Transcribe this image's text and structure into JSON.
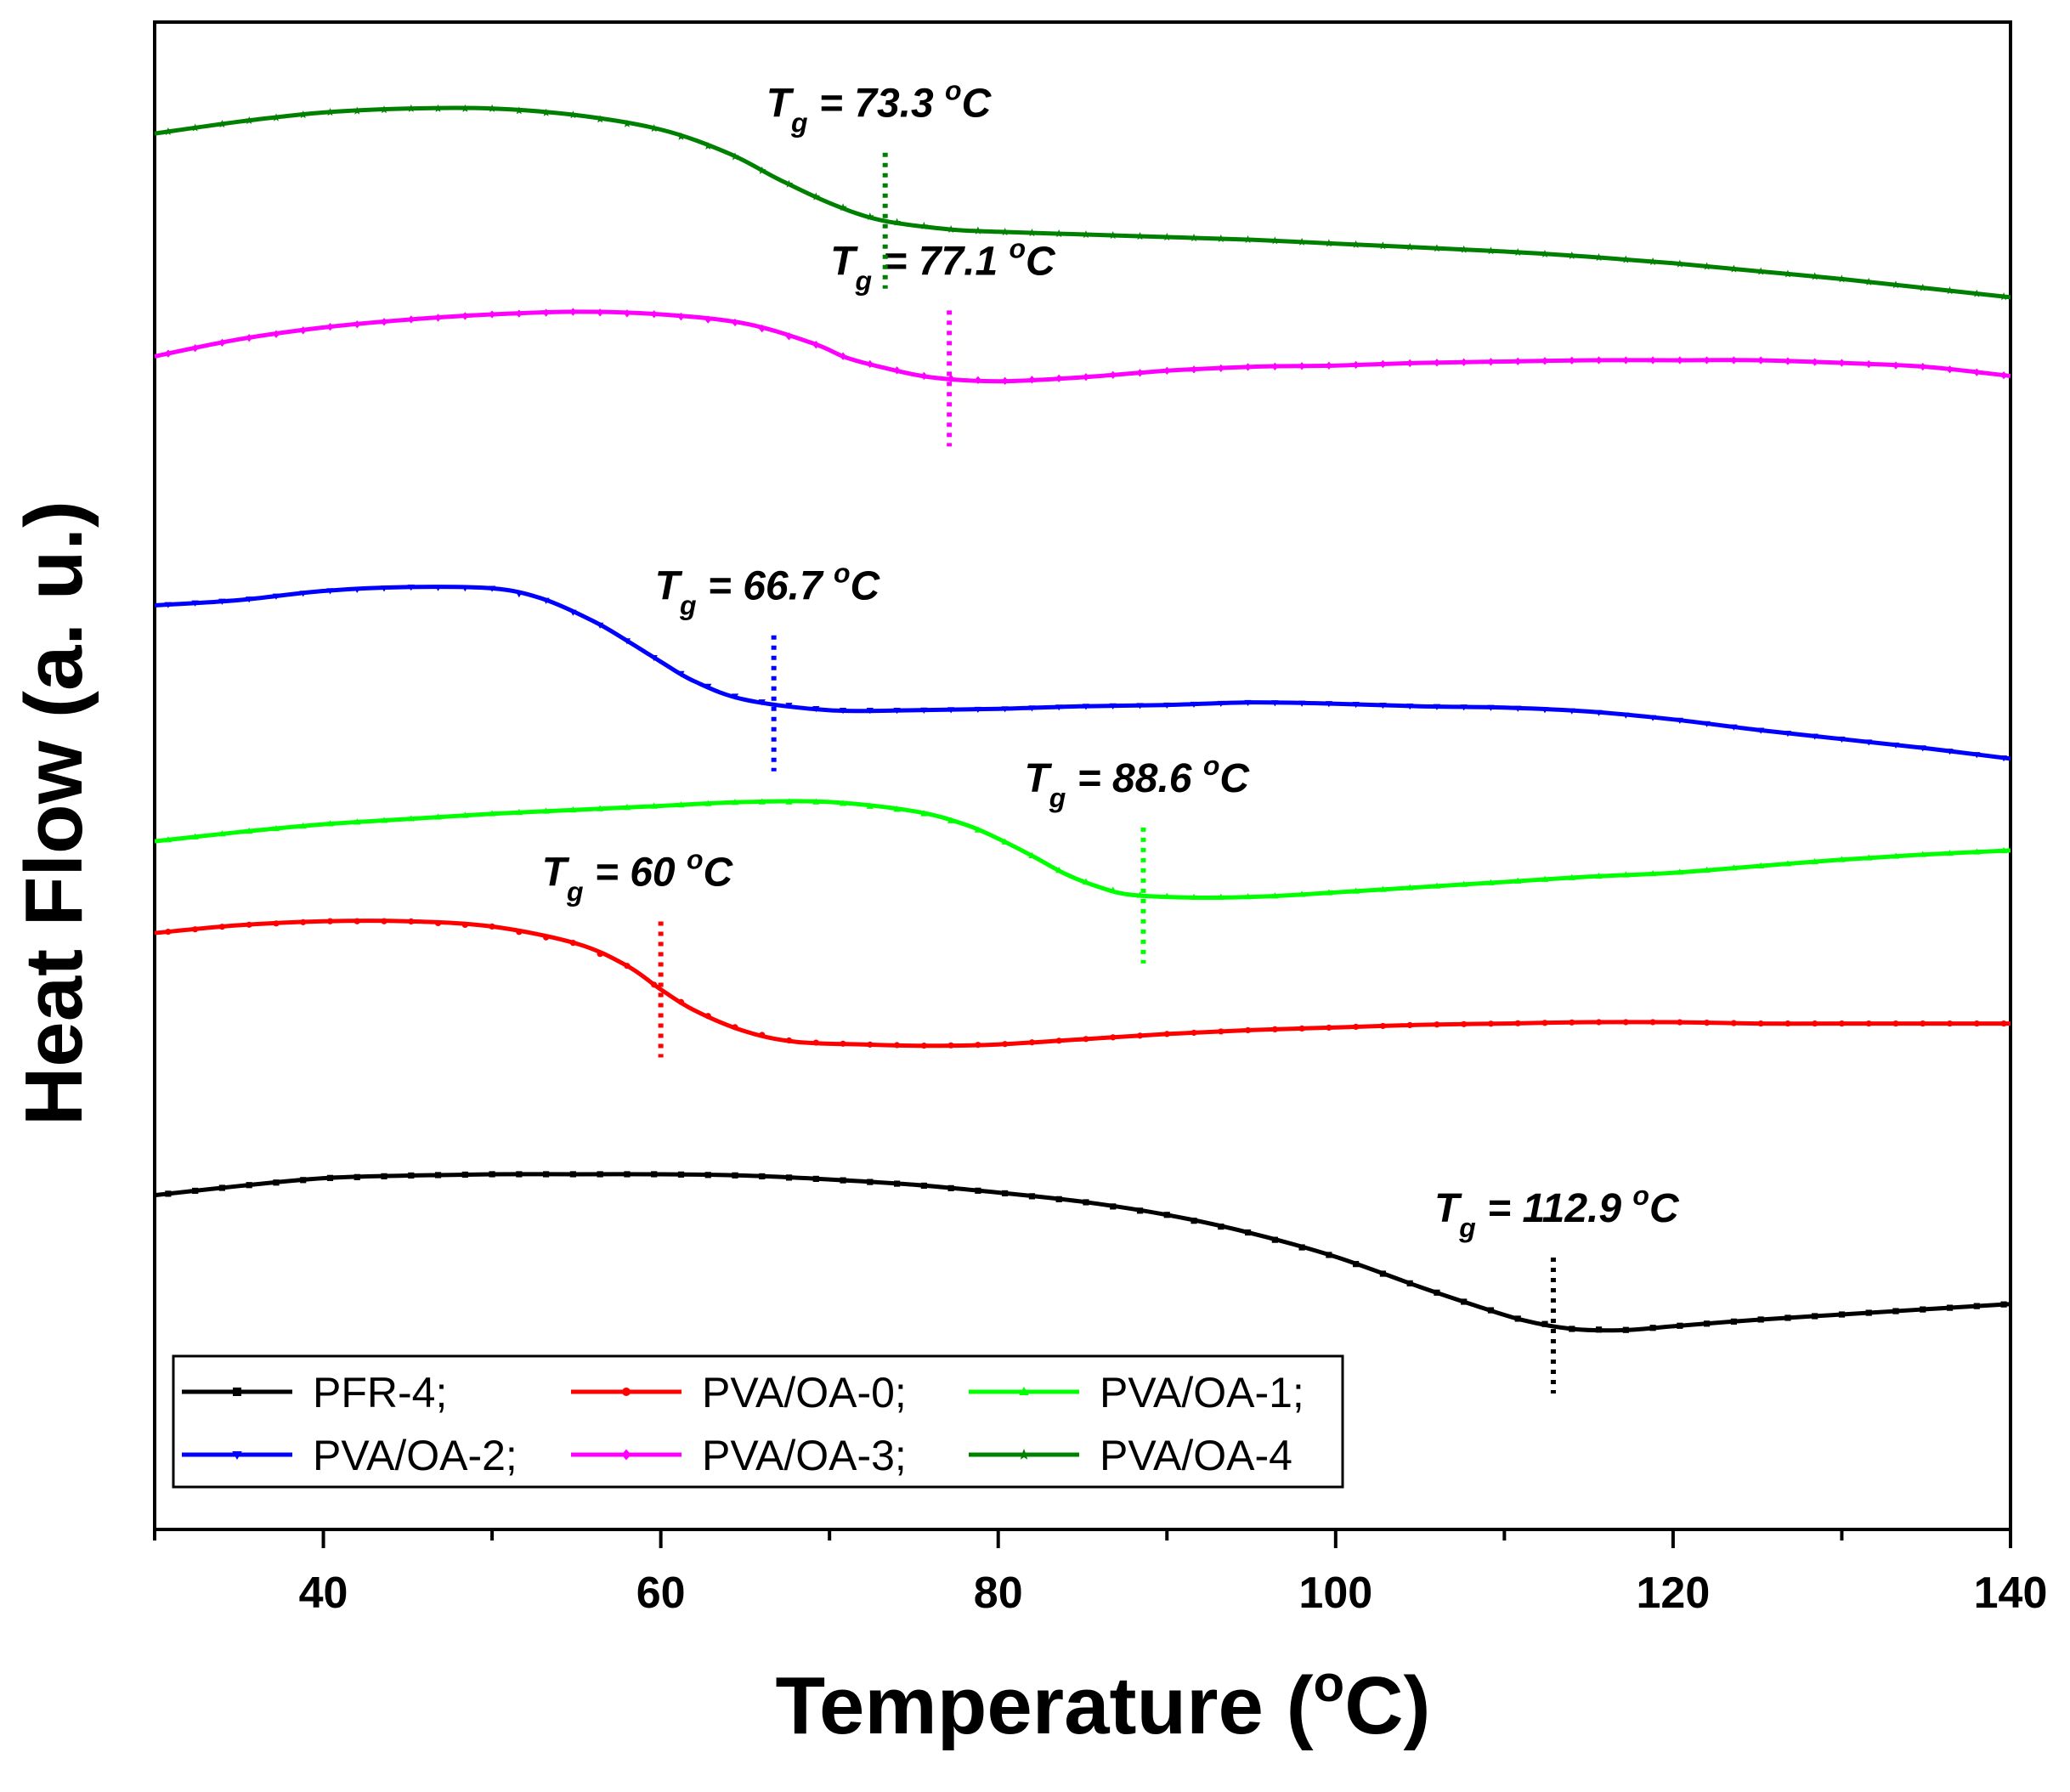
{
  "chart_data": {
    "type": "line",
    "xlabel": "Temperature (°C)",
    "xlabel_main": "Temperature (",
    "xlabel_deg": "o",
    "xlabel_end": "C)",
    "ylabel": "Heat Flow (a. u.)",
    "xlim": [
      30,
      140
    ],
    "ylim": [
      0,
      11.5
    ],
    "y_ticks_shown": false,
    "x_ticks": [
      40,
      60,
      80,
      100,
      120,
      140
    ],
    "x_tick_labels": [
      "40",
      "60",
      "80",
      "100",
      "120",
      "140"
    ],
    "grid": false,
    "legend_position": "bottom-left",
    "series": [
      {
        "name": "PFR-4",
        "legend_label": "PFR-4;",
        "color": "#000000",
        "marker": "square",
        "tg": 112.9,
        "tg_label": "T",
        "tg_sub": "g",
        "tg_eq": " = 112.9 ",
        "tg_deg": "o",
        "tg_unit": "C",
        "points": [
          [
            30,
            2.55
          ],
          [
            35,
            2.62
          ],
          [
            40,
            2.68
          ],
          [
            45,
            2.7
          ],
          [
            50,
            2.71
          ],
          [
            55,
            2.71
          ],
          [
            60,
            2.71
          ],
          [
            65,
            2.7
          ],
          [
            70,
            2.67
          ],
          [
            75,
            2.63
          ],
          [
            80,
            2.57
          ],
          [
            85,
            2.5
          ],
          [
            90,
            2.4
          ],
          [
            95,
            2.26
          ],
          [
            100,
            2.08
          ],
          [
            105,
            1.85
          ],
          [
            108,
            1.72
          ],
          [
            111,
            1.6
          ],
          [
            114,
            1.53
          ],
          [
            117,
            1.52
          ],
          [
            120,
            1.55
          ],
          [
            125,
            1.6
          ],
          [
            130,
            1.64
          ],
          [
            135,
            1.68
          ],
          [
            140,
            1.72
          ]
        ]
      },
      {
        "name": "PVA/OA-0",
        "legend_label": "PVA/OA-0;",
        "color": "#ff0000",
        "marker": "circle",
        "tg": 60,
        "tg_label": "T",
        "tg_sub": "g",
        "tg_eq": " = 60 ",
        "tg_deg": "o",
        "tg_unit": "C",
        "points": [
          [
            30,
            4.55
          ],
          [
            35,
            4.61
          ],
          [
            40,
            4.64
          ],
          [
            45,
            4.64
          ],
          [
            50,
            4.6
          ],
          [
            55,
            4.47
          ],
          [
            58,
            4.3
          ],
          [
            60,
            4.12
          ],
          [
            62,
            3.96
          ],
          [
            65,
            3.8
          ],
          [
            68,
            3.72
          ],
          [
            72,
            3.7
          ],
          [
            76,
            3.69
          ],
          [
            80,
            3.7
          ],
          [
            85,
            3.74
          ],
          [
            90,
            3.78
          ],
          [
            95,
            3.81
          ],
          [
            100,
            3.83
          ],
          [
            105,
            3.85
          ],
          [
            110,
            3.86
          ],
          [
            115,
            3.87
          ],
          [
            120,
            3.87
          ],
          [
            125,
            3.86
          ],
          [
            130,
            3.86
          ],
          [
            135,
            3.86
          ],
          [
            140,
            3.86
          ]
        ]
      },
      {
        "name": "PVA/OA-1",
        "legend_label": "PVA/OA-1;",
        "color": "#00ff00",
        "marker": "triangle-up",
        "tg": 88.6,
        "tg_label": "T",
        "tg_sub": "g",
        "tg_eq": " = 88.6 ",
        "tg_deg": "o",
        "tg_unit": "C",
        "points": [
          [
            30,
            5.25
          ],
          [
            35,
            5.32
          ],
          [
            40,
            5.38
          ],
          [
            45,
            5.42
          ],
          [
            50,
            5.46
          ],
          [
            55,
            5.49
          ],
          [
            60,
            5.52
          ],
          [
            65,
            5.55
          ],
          [
            70,
            5.55
          ],
          [
            75,
            5.48
          ],
          [
            78,
            5.38
          ],
          [
            80,
            5.27
          ],
          [
            82,
            5.14
          ],
          [
            84,
            5.0
          ],
          [
            86,
            4.9
          ],
          [
            88,
            4.84
          ],
          [
            92,
            4.82
          ],
          [
            96,
            4.83
          ],
          [
            100,
            4.86
          ],
          [
            105,
            4.9
          ],
          [
            110,
            4.94
          ],
          [
            115,
            4.98
          ],
          [
            120,
            5.01
          ],
          [
            125,
            5.06
          ],
          [
            130,
            5.11
          ],
          [
            135,
            5.15
          ],
          [
            140,
            5.18
          ]
        ]
      },
      {
        "name": "PVA/OA-2",
        "legend_label": "PVA/OA-2;",
        "color": "#0000ff",
        "marker": "triangle-down",
        "tg": 66.7,
        "tg_label": "T",
        "tg_sub": "g",
        "tg_eq": " = 66.7 ",
        "tg_deg": "o",
        "tg_unit": "C",
        "points": [
          [
            30,
            7.05
          ],
          [
            35,
            7.09
          ],
          [
            40,
            7.16
          ],
          [
            45,
            7.19
          ],
          [
            50,
            7.18
          ],
          [
            53,
            7.1
          ],
          [
            56,
            6.93
          ],
          [
            58,
            6.78
          ],
          [
            60,
            6.62
          ],
          [
            62,
            6.47
          ],
          [
            65,
            6.33
          ],
          [
            70,
            6.25
          ],
          [
            75,
            6.25
          ],
          [
            80,
            6.26
          ],
          [
            85,
            6.28
          ],
          [
            90,
            6.29
          ],
          [
            95,
            6.31
          ],
          [
            100,
            6.3
          ],
          [
            105,
            6.28
          ],
          [
            110,
            6.27
          ],
          [
            115,
            6.24
          ],
          [
            120,
            6.18
          ],
          [
            125,
            6.1
          ],
          [
            130,
            6.03
          ],
          [
            135,
            5.96
          ],
          [
            140,
            5.88
          ]
        ]
      },
      {
        "name": "PVA/OA-3",
        "legend_label": "PVA/OA-3;",
        "color": "#ff00ff",
        "marker": "diamond",
        "tg": 77.1,
        "tg_label": "T",
        "tg_sub": "g",
        "tg_eq": " = 77.1 ",
        "tg_deg": "o",
        "tg_unit": "C",
        "points": [
          [
            30,
            8.95
          ],
          [
            35,
            9.08
          ],
          [
            40,
            9.17
          ],
          [
            45,
            9.23
          ],
          [
            50,
            9.27
          ],
          [
            55,
            9.29
          ],
          [
            60,
            9.27
          ],
          [
            65,
            9.2
          ],
          [
            69,
            9.05
          ],
          [
            71,
            8.94
          ],
          [
            73,
            8.87
          ],
          [
            76,
            8.79
          ],
          [
            80,
            8.76
          ],
          [
            85,
            8.79
          ],
          [
            90,
            8.84
          ],
          [
            95,
            8.87
          ],
          [
            100,
            8.88
          ],
          [
            105,
            8.9
          ],
          [
            110,
            8.91
          ],
          [
            115,
            8.92
          ],
          [
            120,
            8.92
          ],
          [
            125,
            8.92
          ],
          [
            130,
            8.9
          ],
          [
            135,
            8.87
          ],
          [
            140,
            8.8
          ]
        ]
      },
      {
        "name": "PVA/OA-4",
        "legend_label": "PVA/OA-4",
        "color": "#008000",
        "marker": "star",
        "tg": 73.3,
        "tg_label": "T",
        "tg_sub": "g",
        "tg_eq": " = 73.3 ",
        "tg_deg": "o",
        "tg_unit": "C",
        "points": [
          [
            30,
            10.65
          ],
          [
            35,
            10.74
          ],
          [
            40,
            10.81
          ],
          [
            45,
            10.84
          ],
          [
            50,
            10.84
          ],
          [
            55,
            10.79
          ],
          [
            60,
            10.68
          ],
          [
            64,
            10.5
          ],
          [
            67,
            10.3
          ],
          [
            70,
            10.12
          ],
          [
            73,
            9.99
          ],
          [
            77,
            9.92
          ],
          [
            80,
            9.9
          ],
          [
            85,
            9.88
          ],
          [
            90,
            9.86
          ],
          [
            95,
            9.84
          ],
          [
            100,
            9.81
          ],
          [
            105,
            9.78
          ],
          [
            110,
            9.75
          ],
          [
            115,
            9.71
          ],
          [
            120,
            9.66
          ],
          [
            125,
            9.6
          ],
          [
            130,
            9.54
          ],
          [
            135,
            9.47
          ],
          [
            140,
            9.4
          ]
        ]
      }
    ]
  }
}
